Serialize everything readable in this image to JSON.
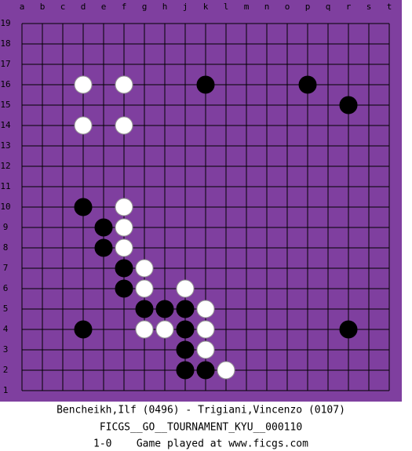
{
  "board": {
    "columns": [
      "a",
      "b",
      "c",
      "d",
      "e",
      "f",
      "g",
      "h",
      "j",
      "k",
      "l",
      "m",
      "n",
      "o",
      "p",
      "q",
      "r",
      "s",
      "t"
    ],
    "rows": [
      19,
      18,
      17,
      16,
      15,
      14,
      13,
      12,
      11,
      10,
      9,
      8,
      7,
      6,
      5,
      4,
      3,
      2,
      1
    ],
    "stones": [
      {
        "color": "white",
        "col": "d",
        "row": 16
      },
      {
        "color": "white",
        "col": "f",
        "row": 16
      },
      {
        "color": "black",
        "col": "k",
        "row": 16
      },
      {
        "color": "black",
        "col": "p",
        "row": 16
      },
      {
        "color": "black",
        "col": "r",
        "row": 15
      },
      {
        "color": "white",
        "col": "d",
        "row": 14
      },
      {
        "color": "white",
        "col": "f",
        "row": 14
      },
      {
        "color": "black",
        "col": "d",
        "row": 10
      },
      {
        "color": "white",
        "col": "f",
        "row": 10
      },
      {
        "color": "black",
        "col": "e",
        "row": 9
      },
      {
        "color": "white",
        "col": "f",
        "row": 9
      },
      {
        "color": "black",
        "col": "e",
        "row": 8
      },
      {
        "color": "white",
        "col": "f",
        "row": 8
      },
      {
        "color": "black",
        "col": "f",
        "row": 7
      },
      {
        "color": "white",
        "col": "g",
        "row": 7
      },
      {
        "color": "black",
        "col": "f",
        "row": 6
      },
      {
        "color": "white",
        "col": "g",
        "row": 6
      },
      {
        "color": "white",
        "col": "j",
        "row": 6
      },
      {
        "color": "black",
        "col": "g",
        "row": 5
      },
      {
        "color": "black",
        "col": "h",
        "row": 5
      },
      {
        "color": "black",
        "col": "j",
        "row": 5
      },
      {
        "color": "white",
        "col": "k",
        "row": 5
      },
      {
        "color": "black",
        "col": "d",
        "row": 4
      },
      {
        "color": "white",
        "col": "g",
        "row": 4
      },
      {
        "color": "white",
        "col": "h",
        "row": 4
      },
      {
        "color": "black",
        "col": "j",
        "row": 4
      },
      {
        "color": "white",
        "col": "k",
        "row": 4
      },
      {
        "color": "black",
        "col": "r",
        "row": 4
      },
      {
        "color": "black",
        "col": "j",
        "row": 3
      },
      {
        "color": "white",
        "col": "k",
        "row": 3
      },
      {
        "color": "black",
        "col": "j",
        "row": 2
      },
      {
        "color": "black",
        "col": "k",
        "row": 2
      },
      {
        "color": "white",
        "col": "l",
        "row": 2
      }
    ]
  },
  "footer": {
    "players": "Bencheikh,Ilf (0496) - Trigiani,Vincenzo (0107)",
    "event": "FICGS__GO__TOURNAMENT_KYU__000110",
    "result": "1-0    Game played at www.ficgs.com"
  }
}
